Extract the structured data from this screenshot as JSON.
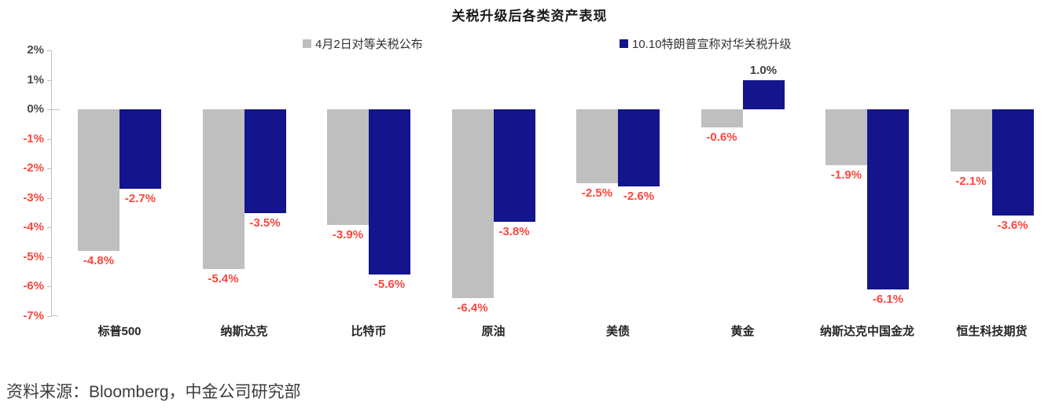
{
  "source": "资料来源：Bloomberg，中金公司研究部",
  "colors": {
    "series_gray": "#bfbfbf",
    "series_navy": "#14148c",
    "negative_label": "#f9463e",
    "positive_label": "#404040",
    "axis": "#c0c0c0",
    "positive_tick": "#4a4a4a",
    "negative_tick": "#f9463e"
  },
  "chart_data": {
    "type": "bar",
    "title": "关税升级后各类资产表现",
    "categories": [
      "标普500",
      "纳斯达克",
      "比特币",
      "原油",
      "美债",
      "黄金",
      "纳斯达克中国金龙",
      "恒生科技期货"
    ],
    "series": [
      {
        "name": "4月2日对等关税公布",
        "color": "#bfbfbf",
        "values": [
          -4.8,
          -5.4,
          -3.9,
          -6.4,
          -2.5,
          -0.6,
          -1.9,
          -2.1
        ]
      },
      {
        "name": "10.10特朗普宣称对华关税升级",
        "color": "#14148c",
        "values": [
          -2.7,
          -3.5,
          -5.6,
          -3.8,
          -2.6,
          1.0,
          -6.1,
          -3.6
        ]
      }
    ],
    "data_labels": [
      [
        "-4.8%",
        "-5.4%",
        "-3.9%",
        "-6.4%",
        "-2.5%",
        "-0.6%",
        "-1.9%",
        "-2.1%"
      ],
      [
        "-2.7%",
        "-3.5%",
        "-5.6%",
        "-3.8%",
        "-2.6%",
        "1.0%",
        "-6.1%",
        "-3.6%"
      ]
    ],
    "xlabel": "",
    "ylabel": "",
    "ylim": [
      -7,
      2
    ],
    "y_ticks": [
      "2%",
      "1%",
      "0%",
      "-1%",
      "-2%",
      "-3%",
      "-4%",
      "-5%",
      "-6%",
      "-7%"
    ],
    "grid": false,
    "legend_position": "top"
  }
}
